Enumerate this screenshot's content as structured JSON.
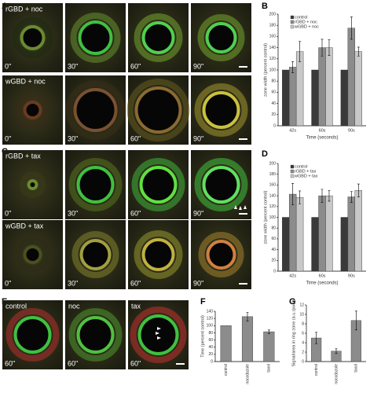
{
  "panel_labels": [
    "A",
    "B",
    "C",
    "D",
    "E",
    "F",
    "G"
  ],
  "image_rows": [
    {
      "label": "rGBD + noc",
      "times": [
        "0\"",
        "30\"",
        "60\"",
        "90\""
      ]
    },
    {
      "label": "wGBD + noc",
      "times": [
        "0\"",
        "30\"",
        "60\"",
        "90\""
      ]
    },
    {
      "label": "rGBD + tax",
      "times": [
        "0\"",
        "30\"",
        "60\"",
        "90\""
      ]
    },
    {
      "label": "wGBD + tax",
      "times": [
        "0\"",
        "30\"",
        "60\"",
        "90\""
      ]
    },
    {
      "labels": [
        "control",
        "noc",
        "tax"
      ],
      "times": [
        "60\"",
        "60\"",
        "60\""
      ]
    }
  ],
  "chart_data": [
    {
      "type": "bar",
      "categories": [
        "42s",
        "60s",
        "90s"
      ],
      "xlabel": "Time (seconds)",
      "ylabel": "zone width (percent control)",
      "ylim": [
        0,
        200
      ],
      "yticks": [
        0,
        20,
        40,
        60,
        80,
        100,
        120,
        140,
        160,
        180,
        200
      ],
      "legend": "top-left",
      "series": [
        {
          "name": "control",
          "color": "#3a3a3a",
          "values": [
            100,
            100,
            100
          ],
          "errors": [
            0,
            0,
            0
          ]
        },
        {
          "name": "rGBD + noc",
          "color": "#8c8c8c",
          "values": [
            105,
            140,
            175
          ],
          "errors": [
            10,
            15,
            20
          ]
        },
        {
          "name": "wGBD + noc",
          "color": "#c8c8c8",
          "values": [
            133,
            140,
            133
          ],
          "errors": [
            18,
            14,
            8
          ]
        }
      ]
    },
    {
      "type": "bar",
      "categories": [
        "42s",
        "60s",
        "90s"
      ],
      "xlabel": "Time (seconds)",
      "ylabel": "zone width (percent control)",
      "ylim": [
        0,
        200
      ],
      "yticks": [
        0,
        20,
        40,
        60,
        80,
        100,
        120,
        140,
        160,
        180,
        200
      ],
      "legend": "top-left",
      "series": [
        {
          "name": "control",
          "color": "#3a3a3a",
          "values": [
            100,
            100,
            100
          ],
          "errors": [
            0,
            0,
            0
          ]
        },
        {
          "name": "rGBD + tax",
          "color": "#8c8c8c",
          "values": [
            143,
            140,
            138
          ],
          "errors": [
            20,
            12,
            10
          ]
        },
        {
          "name": "wGBD + tax",
          "color": "#c8c8c8",
          "values": [
            137,
            140,
            150
          ],
          "errors": [
            12,
            10,
            12
          ]
        }
      ]
    },
    {
      "type": "bar",
      "categories": [
        "control",
        "nocodazole",
        "taxol"
      ],
      "ylabel": "Time (percent control)",
      "ylim": [
        0,
        140
      ],
      "yticks": [
        0,
        20,
        40,
        60,
        80,
        100,
        120,
        140
      ],
      "color": "#8c8c8c",
      "values": [
        100,
        125,
        83
      ],
      "errors": [
        0,
        12,
        5
      ]
    },
    {
      "type": "bar",
      "categories": [
        "control",
        "nocodazole",
        "taxol"
      ],
      "ylabel": "Signal/area in ring zone (a.u./pixel)",
      "ylim": [
        0,
        12
      ],
      "yticks": [
        0,
        2,
        4,
        6,
        8,
        10,
        12
      ],
      "color": "#8c8c8c",
      "values": [
        5,
        2.2,
        8.7
      ],
      "errors": [
        1.2,
        0.5,
        2
      ]
    }
  ]
}
